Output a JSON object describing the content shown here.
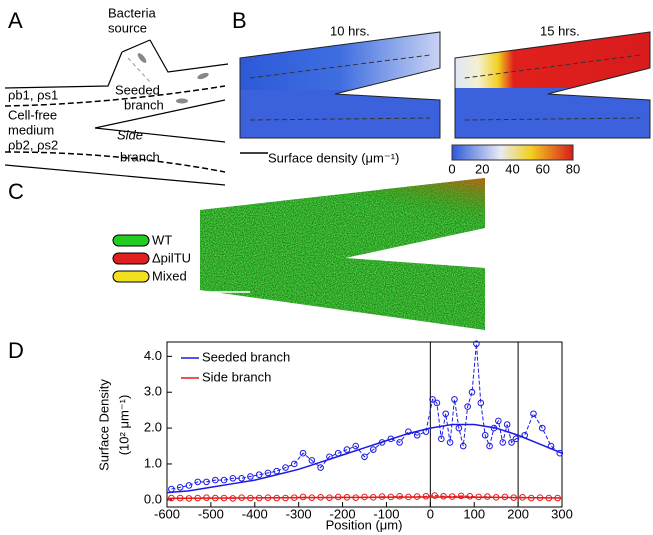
{
  "panel_a": {
    "label": "A",
    "source": [
      "Bacteria",
      "source"
    ],
    "rho_seeded": "ρb1, ρs1",
    "seeded": [
      "Seeded",
      "branch"
    ],
    "medium": [
      "Cell-free",
      "medium"
    ],
    "side": [
      "Side",
      "branch"
    ],
    "rho_side": "ρb2, ρs2"
  },
  "panel_b": {
    "label": "B",
    "times": [
      "10 hrs.",
      "15 hrs."
    ],
    "colorbar_label": "Surface density (μm⁻¹)",
    "colorbar_ticks": [
      0,
      20,
      40,
      60,
      80
    ]
  },
  "panel_c": {
    "label": "C",
    "legend": [
      "WT",
      "ΔpilTU",
      "Mixed"
    ]
  },
  "chart_data": {
    "type": "scatter",
    "label": "D",
    "y_label": [
      "Surface Density",
      "(10² μm⁻¹)"
    ],
    "x_label": "Position (μm)",
    "xlim": [
      -600,
      300
    ],
    "xticks": [
      -600,
      -500,
      -400,
      -300,
      -200,
      -100,
      0,
      100,
      200,
      300
    ],
    "ylim": [
      -0.2,
      4.4
    ],
    "yticks": [
      {
        "value": 0,
        "label": "0.0"
      },
      {
        "value": 1,
        "label": "1.0"
      },
      {
        "value": 2,
        "label": "2.0"
      },
      {
        "value": 3,
        "label": "3.0"
      },
      {
        "value": 4,
        "label": "4.0"
      }
    ],
    "vlines": [
      0,
      200
    ],
    "series": [
      {
        "name": "Seeded branch",
        "color": "#1a1ae6",
        "x": [
          -590,
          -570,
          -550,
          -530,
          -510,
          -490,
          -470,
          -450,
          -430,
          -410,
          -390,
          -370,
          -350,
          -330,
          -310,
          -290,
          -270,
          -250,
          -230,
          -210,
          -190,
          -170,
          -150,
          -130,
          -110,
          -90,
          -70,
          -50,
          -30,
          -10,
          5,
          15,
          25,
          35,
          45,
          55,
          65,
          75,
          85,
          95,
          105,
          115,
          125,
          135,
          145,
          155,
          165,
          175,
          185,
          195,
          215,
          235,
          255,
          275,
          295
        ],
        "values": [
          0.3,
          0.35,
          0.4,
          0.5,
          0.5,
          0.55,
          0.55,
          0.6,
          0.6,
          0.65,
          0.7,
          0.75,
          0.8,
          0.9,
          1.0,
          1.3,
          1.1,
          0.9,
          1.2,
          1.3,
          1.4,
          1.5,
          1.2,
          1.4,
          1.6,
          1.7,
          1.6,
          1.9,
          1.8,
          1.9,
          2.8,
          2.7,
          1.7,
          2.4,
          1.6,
          2.8,
          2.0,
          1.5,
          2.6,
          3.0,
          4.35,
          2.7,
          1.8,
          1.5,
          2.0,
          2.2,
          1.6,
          2.1,
          1.6,
          1.7,
          1.8,
          2.4,
          2.0,
          1.5,
          1.3
        ],
        "fit": {
          "x": [
            -600,
            -550,
            -500,
            -450,
            -400,
            -350,
            -300,
            -250,
            -200,
            -150,
            -100,
            -50,
            0,
            50,
            100,
            150,
            200,
            250,
            300
          ],
          "values": [
            0.2,
            0.25,
            0.35,
            0.45,
            0.55,
            0.7,
            0.85,
            1.05,
            1.25,
            1.45,
            1.65,
            1.85,
            2.0,
            2.1,
            2.1,
            2.0,
            1.8,
            1.55,
            1.3
          ]
        }
      },
      {
        "name": "Side branch",
        "color": "#e61a1a",
        "x": [
          -590,
          -570,
          -550,
          -530,
          -510,
          -490,
          -470,
          -450,
          -430,
          -410,
          -390,
          -370,
          -350,
          -330,
          -310,
          -290,
          -270,
          -250,
          -230,
          -210,
          -190,
          -170,
          -150,
          -130,
          -110,
          -90,
          -70,
          -50,
          -30,
          -10,
          10,
          30,
          50,
          70,
          90,
          110,
          130,
          150,
          170,
          190,
          210,
          230,
          250,
          270,
          290
        ],
        "values": [
          0.05,
          0.05,
          0.04,
          0.05,
          0.06,
          0.05,
          0.05,
          0.04,
          0.06,
          0.05,
          0.05,
          0.06,
          0.05,
          0.05,
          0.06,
          0.08,
          0.06,
          0.07,
          0.06,
          0.08,
          0.07,
          0.06,
          0.08,
          0.07,
          0.09,
          0.08,
          0.1,
          0.08,
          0.09,
          0.1,
          0.12,
          0.1,
          0.09,
          0.11,
          0.1,
          0.08,
          0.09,
          0.07,
          0.08,
          0.06,
          0.07,
          0.05,
          0.06,
          0.05,
          0.05
        ],
        "fit": {
          "x": [
            -600,
            -450,
            -300,
            -150,
            0,
            150,
            300
          ],
          "values": [
            0.04,
            0.05,
            0.06,
            0.07,
            0.08,
            0.07,
            0.05
          ]
        }
      }
    ]
  }
}
